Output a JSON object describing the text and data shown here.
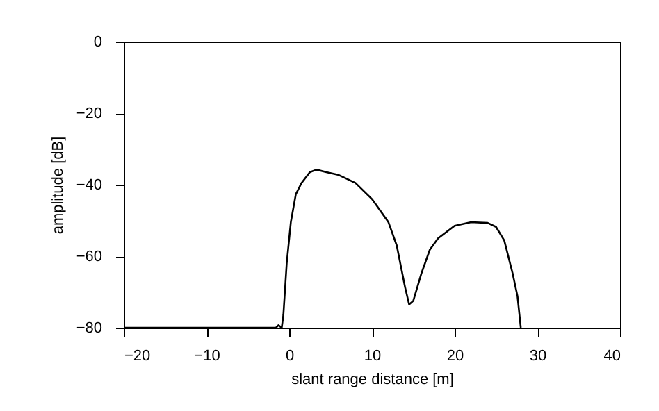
{
  "chart_data": {
    "type": "line",
    "xlabel": "slant range distance [m]",
    "ylabel": "amplitude [dB]",
    "xlim": [
      -20,
      40
    ],
    "ylim": [
      -80,
      0
    ],
    "xticks": [
      -20,
      -10,
      0,
      10,
      20,
      30,
      40
    ],
    "yticks": [
      -80,
      -60,
      -40,
      -20,
      0
    ],
    "grid": false,
    "marker": "none",
    "line_style": "solid",
    "series": [
      {
        "color": "#000000",
        "x": [
          -20,
          -1.6,
          -1.3,
          -0.9,
          -0.7,
          -0.3,
          0.2,
          0.8,
          1.5,
          2.5,
          3.3,
          4.5,
          6,
          8,
          10,
          12,
          13,
          14,
          14.5,
          15,
          16,
          17,
          18,
          20,
          22,
          24,
          25,
          26,
          27,
          27.6,
          28
        ],
        "values": [
          -80,
          -80,
          -79.3,
          -80,
          -76.4,
          -62,
          -50.5,
          -42.7,
          -39.5,
          -36.5,
          -35.8,
          -36.5,
          -37.3,
          -39.5,
          -44,
          -50.5,
          -57,
          -68.6,
          -73.5,
          -72.5,
          -64.7,
          -58.2,
          -55,
          -51.5,
          -50.5,
          -50.7,
          -51.8,
          -55.6,
          -64.7,
          -71.2,
          -80
        ]
      }
    ]
  }
}
